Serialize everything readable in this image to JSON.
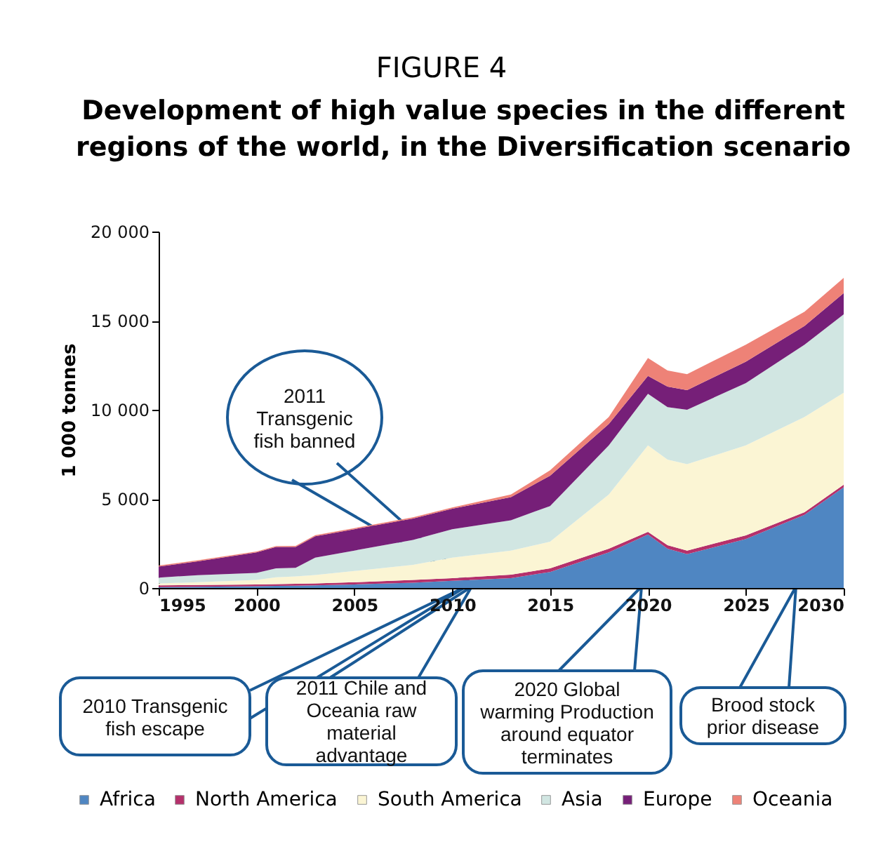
{
  "chart_data": {
    "type": "area",
    "stacked": true,
    "title": "FIGURE 4",
    "subtitle": "Development of high value species in the different regions of the world, in the Diversification scenario",
    "ylabel": "1 000 tonnes",
    "x": [
      1995,
      1997,
      2000,
      2001,
      2002,
      2003,
      2005,
      2008,
      2010,
      2013,
      2015,
      2018,
      2020,
      2021,
      2022,
      2025,
      2028,
      2030
    ],
    "series": [
      {
        "name": "Africa",
        "color": "#4f86c2",
        "values": [
          50,
          70,
          100,
          120,
          130,
          150,
          200,
          300,
          400,
          550,
          900,
          2000,
          3000,
          2200,
          1900,
          2750,
          4100,
          5650
        ]
      },
      {
        "name": "North America",
        "color": "#b5306b",
        "values": [
          100,
          100,
          100,
          100,
          110,
          110,
          120,
          150,
          150,
          200,
          200,
          200,
          150,
          200,
          200,
          200,
          150,
          150
        ]
      },
      {
        "name": "South America",
        "color": "#fbf5d4",
        "values": [
          110,
          150,
          250,
          380,
          410,
          470,
          630,
          850,
          1150,
          1350,
          1500,
          3050,
          4850,
          4800,
          4850,
          5050,
          5350,
          5150
        ]
      },
      {
        "name": "Asia",
        "color": "#d1e6e2",
        "values": [
          320,
          400,
          400,
          500,
          480,
          970,
          1150,
          1400,
          1600,
          1700,
          2000,
          2750,
          2900,
          2950,
          3050,
          3500,
          4050,
          4400
        ]
      },
      {
        "name": "Europe",
        "color": "#761f78",
        "values": [
          620,
          780,
          1150,
          1200,
          1170,
          1200,
          1200,
          1200,
          1150,
          1300,
          1700,
          1200,
          1000,
          1150,
          1100,
          1200,
          1050,
          1200
        ]
      },
      {
        "name": "Oceania",
        "color": "#ee8277",
        "values": [
          60,
          60,
          50,
          50,
          60,
          60,
          60,
          70,
          70,
          150,
          300,
          400,
          1000,
          900,
          900,
          950,
          800,
          850
        ]
      }
    ],
    "xlim": [
      1995,
      2030
    ],
    "xticks": [
      1995,
      2000,
      2005,
      2010,
      2015,
      2020,
      2025,
      2030
    ],
    "ylim": [
      0,
      20000
    ],
    "yticks": [
      0,
      {
        "value": 5000,
        "label": "5 000"
      },
      {
        "value": 10000,
        "label": "10 000"
      },
      {
        "value": 15000,
        "label": "15 000"
      },
      {
        "value": 20000,
        "label": "20 000"
      }
    ],
    "legend": "bottom",
    "annotations": [
      "2011 Transgenic fish banned",
      "2010 Transgenic fish escape",
      "2011 Chile and Oceania raw material advantage",
      "2020 Global warming Production around equator terminates",
      "Brood stock prior disease"
    ]
  }
}
